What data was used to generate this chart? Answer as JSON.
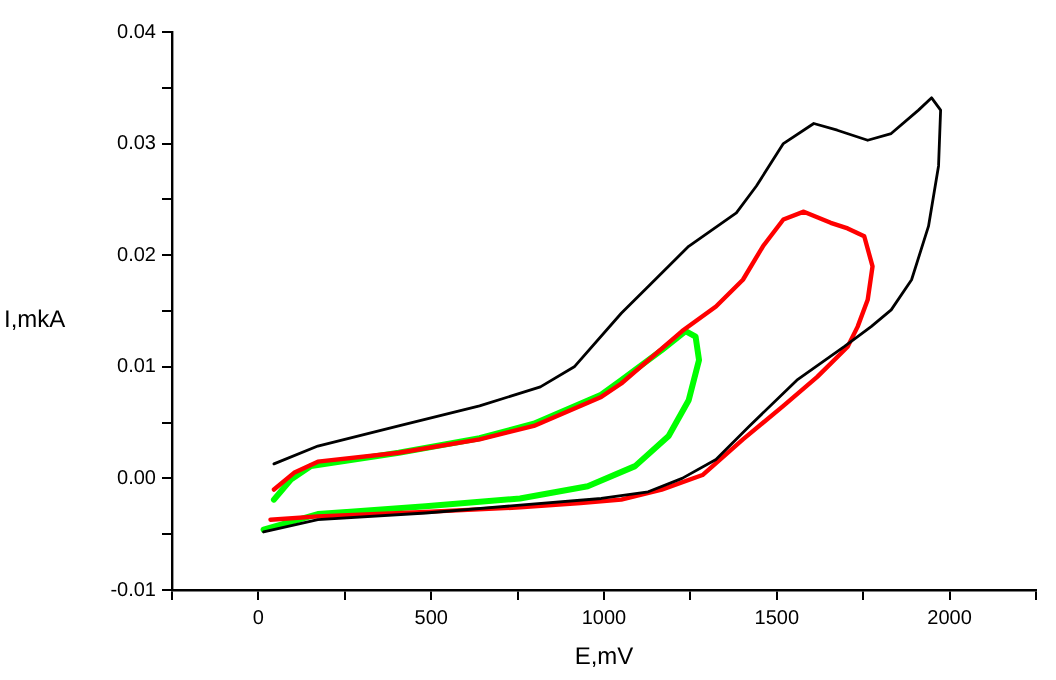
{
  "chart_data": {
    "type": "line",
    "xlabel": "E,mV",
    "ylabel": "I,mkA",
    "xlim": [
      -250,
      2250
    ],
    "xticks": [
      {
        "value": -250,
        "label": null
      },
      0,
      {
        "value": 250,
        "label": null
      },
      500,
      {
        "value": 750,
        "label": null
      },
      1000,
      {
        "value": 1250,
        "label": null
      },
      1500,
      {
        "value": 1750,
        "label": null
      },
      2000,
      {
        "value": 2250,
        "label": null
      }
    ],
    "ylim": [
      -0.01,
      0.04
    ],
    "yticks": [
      {
        "value": -0.01,
        "label": "-0.01"
      },
      {
        "value": -0.005,
        "label": null
      },
      {
        "value": 0,
        "label": "0.00"
      },
      {
        "value": 0.005,
        "label": null
      },
      {
        "value": 0.01,
        "label": "0.01"
      },
      {
        "value": 0.015,
        "label": null
      },
      {
        "value": 0.02,
        "label": "0.02"
      },
      {
        "value": 0.025,
        "label": null
      },
      {
        "value": 0.03,
        "label": "0.03"
      },
      {
        "value": 0.035,
        "label": null
      },
      {
        "value": 0.04,
        "label": "0.04"
      }
    ],
    "grid": false,
    "legend": false,
    "marker": "none",
    "line_style": "solid",
    "series": [
      {
        "color": "#000000",
        "x": [
          45,
          172,
          406,
          640,
          816,
          914,
          1050,
          1128,
          1245,
          1383,
          1441,
          1519,
          1607,
          1675,
          1763,
          1831,
          1910,
          1948,
          1974,
          1968,
          1939,
          1890,
          1831,
          1773,
          1695,
          1558,
          1421,
          1324,
          1226,
          1128,
          992,
          757,
          484,
          172,
          15
        ],
        "values": [
          0.0013,
          0.0029,
          0.0047,
          0.0065,
          0.0082,
          0.01,
          0.0148,
          0.0172,
          0.0208,
          0.0238,
          0.0262,
          0.03,
          0.0318,
          0.0312,
          0.0303,
          0.0309,
          0.033,
          0.0341,
          0.033,
          0.028,
          0.0226,
          0.0178,
          0.0151,
          0.0136,
          0.0118,
          0.0088,
          0.0047,
          0.0017,
          0.0,
          -0.0012,
          -0.0018,
          -0.0024,
          -0.0031,
          -0.0037,
          -0.0048
        ]
      },
      {
        "color": "#ff0000",
        "x": [
          45,
          103,
          172,
          406,
          640,
          797,
          992,
          1050,
          1226,
          1324,
          1402,
          1460,
          1519,
          1578,
          1656,
          1705,
          1753,
          1777,
          1763,
          1734,
          1705,
          1617,
          1519,
          1402,
          1285,
          1167,
          1050,
          932,
          757,
          484,
          172,
          35
        ],
        "values": [
          -0.001,
          0.0005,
          0.0015,
          0.0023,
          0.0035,
          0.0047,
          0.0073,
          0.0085,
          0.0132,
          0.0154,
          0.0178,
          0.0208,
          0.0232,
          0.0239,
          0.0229,
          0.0224,
          0.0217,
          0.019,
          0.016,
          0.0136,
          0.0118,
          0.0091,
          0.0065,
          0.0035,
          0.0003,
          -0.001,
          -0.0019,
          -0.0022,
          -0.0026,
          -0.003,
          -0.0034,
          -0.0037
        ]
      },
      {
        "color": "#00ff00",
        "x": [
          45,
          94,
          152,
          406,
          640,
          797,
          992,
          1050,
          1167,
          1236,
          1265,
          1275,
          1245,
          1187,
          1090,
          953,
          757,
          484,
          172,
          15
        ],
        "values": [
          -0.0019,
          -0.0001,
          0.0011,
          0.0023,
          0.0036,
          0.0049,
          0.0075,
          0.0088,
          0.0115,
          0.0132,
          0.0127,
          0.0106,
          0.007,
          0.0038,
          0.0011,
          -0.0007,
          -0.0018,
          -0.0025,
          -0.0032,
          -0.0046
        ]
      }
    ]
  }
}
